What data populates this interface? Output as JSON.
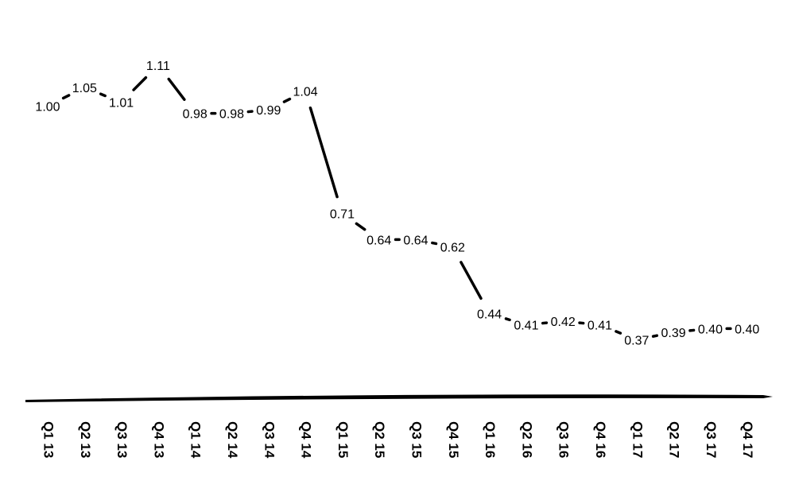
{
  "chart_data": {
    "type": "line",
    "title": "",
    "xlabel": "",
    "ylabel": "",
    "ylim": [
      0,
      1.2
    ],
    "grid": false,
    "legend": "none",
    "categories": [
      "Q1 13",
      "Q2 13",
      "Q3 13",
      "Q4 13",
      "Q1 14",
      "Q2 14",
      "Q3 14",
      "Q4 14",
      "Q1 15",
      "Q2 15",
      "Q3 15",
      "Q4 15",
      "Q1 16",
      "Q2 16",
      "Q3 16",
      "Q4 16",
      "Q1 17",
      "Q2 17",
      "Q3 17",
      "Q4 17"
    ],
    "values": [
      1.0,
      1.05,
      1.01,
      1.11,
      0.98,
      0.98,
      0.99,
      1.04,
      0.71,
      0.64,
      0.64,
      0.62,
      0.44,
      0.41,
      0.42,
      0.41,
      0.37,
      0.39,
      0.4,
      0.4
    ],
    "data_labels": [
      "1.00",
      "1.05",
      "1.01",
      "1.11",
      "0.98",
      "0.98",
      "0.99",
      "1.04",
      "0.71",
      "0.64",
      "0.64",
      "0.62",
      "0.44",
      "0.41",
      "0.42",
      "0.41",
      "0.37",
      "0.39",
      "0.40",
      "0.40"
    ],
    "colors": {
      "line": "#000000",
      "axis": "#000000",
      "text": "#000000"
    }
  }
}
